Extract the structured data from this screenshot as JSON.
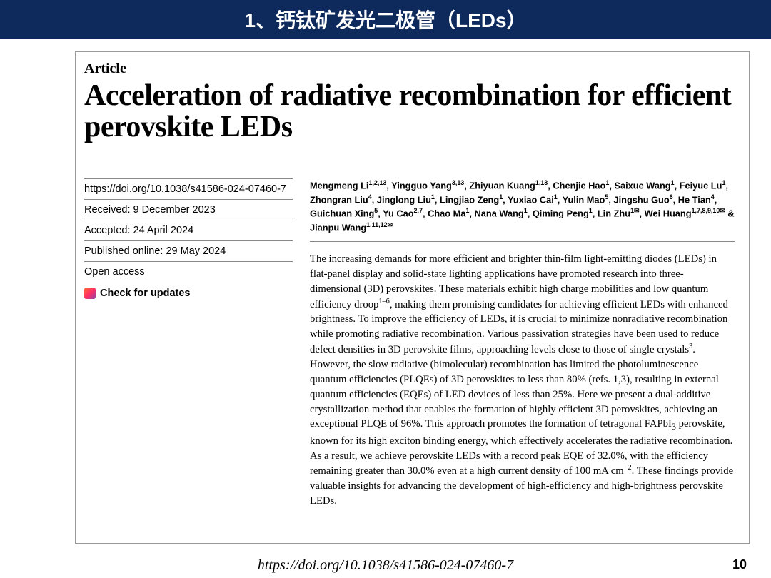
{
  "slide": {
    "header_title": "1、钙钛矿发光二极管（LEDs）",
    "page_number": "10",
    "footer_url": "https://doi.org/10.1038/s41586-024-07460-7"
  },
  "article": {
    "label": "Article",
    "title": "Acceleration of radiative recombination for efficient perovskite LEDs",
    "meta": {
      "doi": "https://doi.org/10.1038/s41586-024-07460-7",
      "received": "Received: 9 December 2023",
      "accepted": "Accepted: 24 April 2024",
      "published": "Published online: 29 May 2024",
      "access": "Open access",
      "check_updates": "Check for updates"
    },
    "authors_html": "Mengmeng Li<sup>1,2,13</sup>, Yingguo Yang<sup>3,13</sup>, Zhiyuan Kuang<sup>1,13</sup>, Chenjie Hao<sup>1</sup>, Saixue Wang<sup>1</sup>, Feiyue Lu<sup>1</sup>, Zhongran Liu<sup>4</sup>, Jinglong Liu<sup>1</sup>, Lingjiao Zeng<sup>1</sup>, Yuxiao Cai<sup>1</sup>, Yulin Mao<sup>5</sup>, Jingshu Guo<sup>6</sup>, He Tian<sup>4</sup>, Guichuan Xing<sup>5</sup>, Yu Cao<sup>2,7</sup>, Chao Ma<sup>1</sup>, Nana Wang<sup>1</sup>, Qiming Peng<sup>1</sup>, Lin Zhu<sup>1✉</sup>, Wei Huang<sup>1,7,8,9,10✉</sup> & Jianpu Wang<sup>1,11,12✉</sup>",
    "abstract_html": "The increasing demands for more efficient and brighter thin-film light-emitting diodes (LEDs) in flat-panel display and solid-state lighting applications have promoted research into three-dimensional (3D) perovskites. These materials exhibit high charge mobilities and low quantum efficiency droop<sup>1–6</sup>, making them promising candidates for achieving efficient LEDs with enhanced brightness. To improve the efficiency of LEDs, it is crucial to minimize nonradiative recombination while promoting radiative recombination. Various passivation strategies have been used to reduce defect densities in 3D perovskite films, approaching levels close to those of single crystals<sup>3</sup>. However, the slow radiative (bimolecular) recombination has limited the photoluminescence quantum efficiencies (PLQEs) of 3D perovskites to less than 80% (refs. 1,3), resulting in external quantum efficiencies (EQEs) of LED devices of less than 25%. Here we present a dual-additive crystallization method that enables the formation of highly efficient 3D perovskites, achieving an exceptional PLQE of 96%. This approach promotes the formation of tetragonal FAPbI<sub>3</sub> perovskite, known for its high exciton binding energy, which effectively accelerates the radiative recombination. As a result, we achieve perovskite LEDs with a record peak EQE of 32.0%, with the efficiency remaining greater than 30.0% even at a high current density of 100 mA cm<sup>−2</sup>. These findings provide valuable insights for advancing the development of high-efficiency and high-brightness perovskite LEDs."
  },
  "colors": {
    "banner_bg": "#0e2a5c",
    "banner_text": "#ffffff",
    "border": "#999999",
    "text": "#000000"
  }
}
